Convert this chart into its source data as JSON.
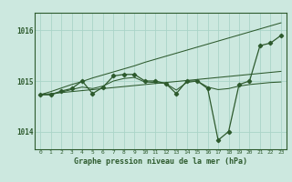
{
  "xlabel": "Graphe pression niveau de la mer (hPa)",
  "ylabel": "",
  "background_color": "#cce8df",
  "grid_color": "#aad4c8",
  "line_color": "#2d5a2d",
  "xlim": [
    -0.5,
    23.5
  ],
  "ylim": [
    1013.65,
    1016.35
  ],
  "yticks": [
    1014,
    1015,
    1016
  ],
  "xticks": [
    0,
    1,
    2,
    3,
    4,
    5,
    6,
    7,
    8,
    9,
    10,
    11,
    12,
    13,
    14,
    15,
    16,
    17,
    18,
    19,
    20,
    21,
    22,
    23
  ],
  "series": {
    "main": [
      1014.73,
      1014.73,
      1014.8,
      1014.85,
      1015.0,
      1014.75,
      1014.88,
      1015.1,
      1015.13,
      1015.13,
      1015.0,
      1015.0,
      1014.95,
      1014.75,
      1015.0,
      1015.0,
      1014.85,
      1013.83,
      1014.0,
      1014.93,
      1015.0,
      1015.7,
      1015.75,
      1015.9
    ],
    "trend1": [
      1014.73,
      1014.73,
      1014.78,
      1014.83,
      1014.88,
      1014.85,
      1014.9,
      1015.0,
      1015.05,
      1015.07,
      1014.98,
      1014.97,
      1014.95,
      1014.82,
      1014.97,
      1015.0,
      1014.88,
      1014.83,
      1014.85,
      1014.9,
      1014.93,
      1014.95,
      1014.97,
      1014.98
    ],
    "linear1": [
      1014.73,
      1014.75,
      1014.77,
      1014.79,
      1014.81,
      1014.83,
      1014.85,
      1014.87,
      1014.89,
      1014.91,
      1014.93,
      1014.95,
      1014.97,
      1014.99,
      1015.01,
      1015.03,
      1015.05,
      1015.07,
      1015.09,
      1015.11,
      1015.13,
      1015.15,
      1015.17,
      1015.19
    ],
    "linear2": [
      1014.73,
      1014.79,
      1014.86,
      1014.93,
      1014.99,
      1015.06,
      1015.12,
      1015.18,
      1015.24,
      1015.3,
      1015.37,
      1015.43,
      1015.49,
      1015.55,
      1015.61,
      1015.67,
      1015.73,
      1015.79,
      1015.85,
      1015.91,
      1015.97,
      1016.03,
      1016.09,
      1016.15
    ]
  }
}
